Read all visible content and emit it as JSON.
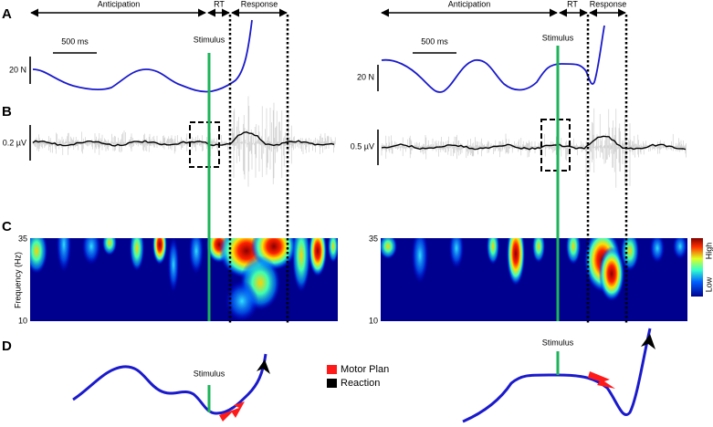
{
  "panel_labels": [
    "A",
    "B",
    "C",
    "D"
  ],
  "left": {
    "anticipation": "Anticipation",
    "rt": "RT",
    "response": "Response",
    "time_scale": "500 ms",
    "stimulus": "Stimulus",
    "force_scale": "20 N",
    "emg_scale": "0.2 µV",
    "freq_max": "35",
    "freq_min": "10"
  },
  "right": {
    "anticipation": "Anticipation",
    "rt": "RT",
    "response": "Response",
    "time_scale": "500 ms",
    "stimulus": "Stimulus",
    "force_scale": "20 N",
    "emg_scale": "0.5 µV",
    "freq_max": "35",
    "freq_min": "10"
  },
  "freq_axis_label": "Frequency (Hz)",
  "colorbar": {
    "high": "High",
    "low": "Low"
  },
  "panel_d": {
    "stimulus_left": "Stimulus",
    "stimulus_right": "Stimulus",
    "legend": [
      "Motor Plan",
      "Reaction"
    ]
  }
}
